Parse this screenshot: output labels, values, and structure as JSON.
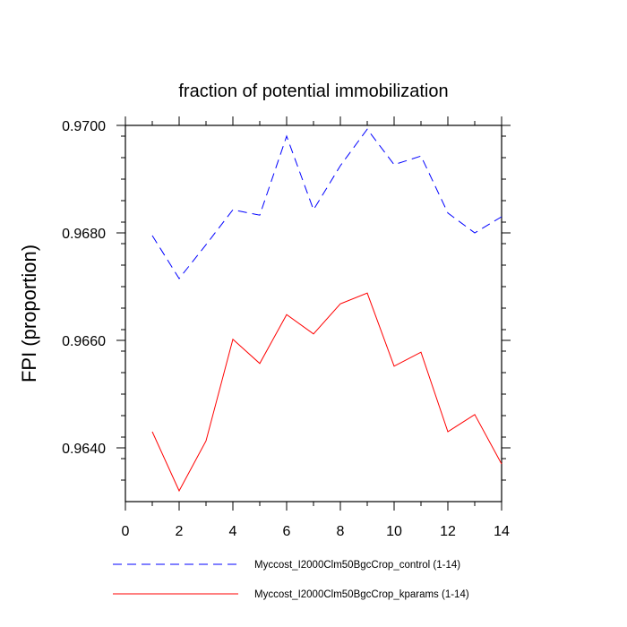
{
  "chart_data": {
    "type": "line",
    "title": "fraction of potential immobilization",
    "xlabel": "",
    "ylabel": "FPI  (proportion)",
    "xlim": [
      0,
      14
    ],
    "ylim": [
      0.963,
      0.97
    ],
    "x_ticks": [
      0,
      2,
      4,
      6,
      8,
      10,
      12,
      14
    ],
    "x_tick_labels": [
      "0",
      "2",
      "4",
      "6",
      "8",
      "10",
      "12",
      "14"
    ],
    "y_ticks": [
      0.964,
      0.966,
      0.968,
      0.97
    ],
    "y_tick_labels": [
      "0.9640",
      "0.9660",
      "0.9680",
      "0.9700"
    ],
    "grid": false,
    "legend_position": "bottom",
    "x": [
      1,
      2,
      3,
      4,
      5,
      6,
      7,
      8,
      9,
      10,
      11,
      12,
      13,
      14
    ],
    "series": [
      {
        "name": "Myccost_I2000Clm50BgcCrop_control (1-14)",
        "color": "#0000ff",
        "dash": "dashed",
        "values": [
          0.96795,
          0.96715,
          0.96778,
          0.96843,
          0.96833,
          0.9698,
          0.96843,
          0.96925,
          0.96993,
          0.96927,
          0.96943,
          0.96837,
          0.968,
          0.9683
        ]
      },
      {
        "name": "Myccost_I2000Clm50BgcCrop_kparams (1-14)",
        "color": "#ff0000",
        "dash": "solid",
        "values": [
          0.9643,
          0.9632,
          0.96413,
          0.96602,
          0.96557,
          0.96648,
          0.96612,
          0.96668,
          0.96688,
          0.96552,
          0.96578,
          0.9643,
          0.96462,
          0.9637
        ]
      }
    ]
  }
}
